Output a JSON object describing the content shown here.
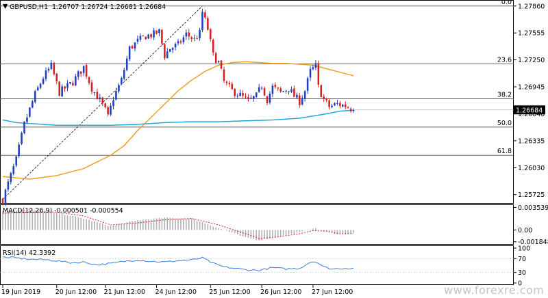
{
  "header": {
    "symbol_label": "GBPUSD,H1",
    "ohlc_label": "1.26707 1.26724 1.26681 1.26684",
    "arrow_glyph": "▼"
  },
  "watermark": "www.forexre.com",
  "last_price_label": "1.26684",
  "colors": {
    "bull": "#1f3fbf",
    "bear": "#d42020",
    "ma_orange": "#f0a020",
    "ma_blue": "#20a8d8",
    "fib_line": "#666666",
    "macd_hist": "#b0b0b0",
    "macd_signal": "#e02020",
    "rsi_line": "#2f7fe0",
    "grid": "#000000",
    "price_badge": "#000000"
  },
  "chart_data": {
    "type": "candlestick",
    "main_panel": {
      "title": "GBPUSD,H1",
      "y_ticks": [
        "1.27860",
        "1.27555",
        "1.27250",
        "1.26945",
        "1.26640",
        "1.26335",
        "1.26030",
        "1.25725"
      ],
      "y_tick_values": [
        1.2786,
        1.27555,
        1.2725,
        1.26945,
        1.2664,
        1.26335,
        1.2603,
        1.25725
      ],
      "ylim": [
        1.2563,
        1.2792
      ],
      "fib_levels": [
        {
          "label": "0.0",
          "value": 1.2786
        },
        {
          "label": "23.6",
          "value": 1.27205
        },
        {
          "label": "38.2",
          "value": 1.2681
        },
        {
          "label": "50.0",
          "value": 1.2649
        },
        {
          "label": "61.8",
          "value": 1.2617
        }
      ],
      "trendline": {
        "from": [
          0,
          1.2567
        ],
        "to": [
          74,
          1.2786
        ]
      },
      "candles_anchor": [
        [
          0,
          1.2567
        ],
        [
          5,
          1.2612
        ],
        [
          8,
          1.2652
        ],
        [
          12,
          1.2686
        ],
        [
          15,
          1.2705
        ],
        [
          18,
          1.2718
        ],
        [
          21,
          1.2688
        ],
        [
          26,
          1.27
        ],
        [
          30,
          1.2717
        ],
        [
          33,
          1.2693
        ],
        [
          36,
          1.2679
        ],
        [
          38,
          1.2668
        ],
        [
          39,
          1.266
        ],
        [
          41,
          1.2682
        ],
        [
          44,
          1.2702
        ],
        [
          47,
          1.2738
        ],
        [
          50,
          1.2746
        ],
        [
          53,
          1.2752
        ],
        [
          56,
          1.2754
        ],
        [
          58,
          1.2757
        ],
        [
          60,
          1.273
        ],
        [
          62,
          1.2738
        ],
        [
          65,
          1.2742
        ],
        [
          68,
          1.2754
        ],
        [
          71,
          1.2748
        ],
        [
          73,
          1.2755
        ],
        [
          74,
          1.2779
        ],
        [
          76,
          1.276
        ],
        [
          78,
          1.273
        ],
        [
          80,
          1.2722
        ],
        [
          82,
          1.27
        ],
        [
          85,
          1.269
        ],
        [
          88,
          1.2685
        ],
        [
          91,
          1.2678
        ],
        [
          94,
          1.2684
        ],
        [
          96,
          1.2696
        ],
        [
          98,
          1.268
        ],
        [
          100,
          1.2694
        ],
        [
          103,
          1.2688
        ],
        [
          106,
          1.2693
        ],
        [
          108,
          1.2684
        ],
        [
          110,
          1.2678
        ],
        [
          112,
          1.269
        ],
        [
          114,
          1.2712
        ],
        [
          116,
          1.2718
        ],
        [
          117,
          1.2694
        ],
        [
          119,
          1.268
        ],
        [
          121,
          1.2672
        ],
        [
          124,
          1.2675
        ],
        [
          127,
          1.2673
        ],
        [
          129,
          1.267
        ],
        [
          130,
          1.2668
        ]
      ],
      "moving_averages": [
        {
          "color": "orange",
          "points": [
            [
              0,
              1.2593
            ],
            [
              10,
              1.259
            ],
            [
              20,
              1.2594
            ],
            [
              30,
              1.2602
            ],
            [
              40,
              1.2617
            ],
            [
              45,
              1.2628
            ],
            [
              50,
              1.2645
            ],
            [
              55,
              1.266
            ],
            [
              60,
              1.2675
            ],
            [
              65,
              1.269
            ],
            [
              70,
              1.2702
            ],
            [
              75,
              1.2712
            ],
            [
              80,
              1.2719
            ],
            [
              85,
              1.2722
            ],
            [
              90,
              1.2723
            ],
            [
              95,
              1.2722
            ],
            [
              100,
              1.2721
            ],
            [
              105,
              1.2721
            ],
            [
              110,
              1.272
            ],
            [
              115,
              1.2719
            ],
            [
              120,
              1.2715
            ],
            [
              125,
              1.2711
            ],
            [
              130,
              1.2707
            ]
          ]
        },
        {
          "color": "blue",
          "points": [
            [
              0,
              1.2657
            ],
            [
              5,
              1.2654
            ],
            [
              10,
              1.2653
            ],
            [
              20,
              1.2651
            ],
            [
              30,
              1.2651
            ],
            [
              40,
              1.2651
            ],
            [
              50,
              1.2652
            ],
            [
              60,
              1.2654
            ],
            [
              70,
              1.2655
            ],
            [
              80,
              1.2655
            ],
            [
              90,
              1.2656
            ],
            [
              100,
              1.2657
            ],
            [
              110,
              1.2659
            ],
            [
              120,
              1.2664
            ],
            [
              125,
              1.2667
            ],
            [
              130,
              1.2668
            ]
          ]
        }
      ]
    },
    "macd_panel": {
      "label": "MACD(12,26,9) -0.000501 -0.000554",
      "y_ticks": [
        "0.003539",
        "0.00",
        "-0.001848"
      ],
      "y_tick_values": [
        0.003539,
        0.0,
        -0.001848
      ],
      "ylim": [
        -0.0022,
        0.0039
      ],
      "histogram_anchor": [
        [
          0,
          0.003
        ],
        [
          10,
          0.0032
        ],
        [
          20,
          0.0027
        ],
        [
          30,
          0.0018
        ],
        [
          40,
          0.0006
        ],
        [
          50,
          0.0015
        ],
        [
          60,
          0.0019
        ],
        [
          70,
          0.0018
        ],
        [
          80,
          0.0003
        ],
        [
          90,
          -0.0012
        ],
        [
          95,
          -0.0016
        ],
        [
          100,
          -0.0012
        ],
        [
          110,
          -0.0004
        ],
        [
          115,
          0.0003
        ],
        [
          120,
          -0.0003
        ],
        [
          125,
          -0.0007
        ],
        [
          130,
          -0.0005
        ]
      ],
      "signal_anchor": [
        [
          0,
          0.0026
        ],
        [
          10,
          0.0028
        ],
        [
          20,
          0.0028
        ],
        [
          30,
          0.0022
        ],
        [
          40,
          0.0008
        ],
        [
          50,
          0.0011
        ],
        [
          60,
          0.0016
        ],
        [
          70,
          0.0018
        ],
        [
          80,
          0.0008
        ],
        [
          90,
          -0.0006
        ],
        [
          95,
          -0.0013
        ],
        [
          100,
          -0.0012
        ],
        [
          110,
          -0.0006
        ],
        [
          115,
          -0.0001
        ],
        [
          120,
          -0.0002
        ],
        [
          125,
          -0.0006
        ],
        [
          130,
          -0.00055
        ]
      ]
    },
    "rsi_panel": {
      "label": "RSI(14) 42.3392",
      "y_ticks": [
        "100",
        "70",
        "30",
        "0"
      ],
      "y_tick_values": [
        100,
        70,
        30,
        0
      ],
      "ylim": [
        0,
        100
      ],
      "values_anchor": [
        [
          0,
          74
        ],
        [
          5,
          72
        ],
        [
          10,
          68
        ],
        [
          15,
          67
        ],
        [
          20,
          64
        ],
        [
          25,
          58
        ],
        [
          30,
          60
        ],
        [
          35,
          52
        ],
        [
          40,
          56
        ],
        [
          45,
          62
        ],
        [
          50,
          66
        ],
        [
          55,
          62
        ],
        [
          60,
          60
        ],
        [
          65,
          64
        ],
        [
          70,
          66
        ],
        [
          74,
          72
        ],
        [
          78,
          56
        ],
        [
          82,
          46
        ],
        [
          86,
          42
        ],
        [
          90,
          38
        ],
        [
          95,
          36
        ],
        [
          100,
          44
        ],
        [
          105,
          40
        ],
        [
          110,
          42
        ],
        [
          114,
          60
        ],
        [
          116,
          62
        ],
        [
          119,
          46
        ],
        [
          122,
          40
        ],
        [
          126,
          42
        ],
        [
          130,
          42
        ]
      ]
    },
    "x_ticks": [
      "19 Jun 2019",
      "20 Jun 12:00",
      "21 Jun 12:00",
      "24 Jun 12:00",
      "25 Jun 12:00",
      "26 Jun 12:00",
      "27 Jun 12:00"
    ],
    "x_tick_indices": [
      0,
      20,
      38,
      57,
      77,
      96,
      115
    ],
    "x_range": [
      0,
      131
    ]
  }
}
